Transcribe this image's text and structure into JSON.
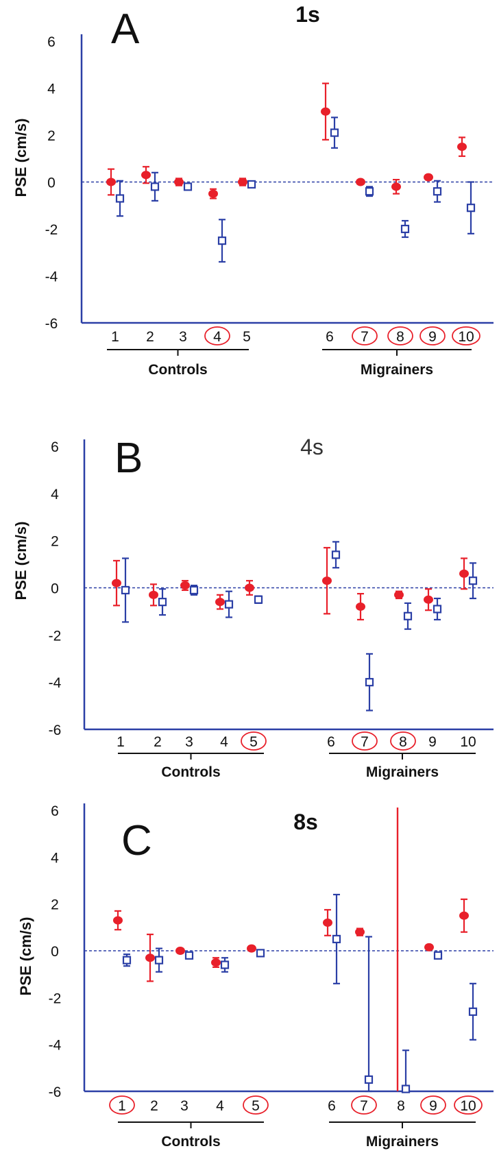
{
  "chart_data": [
    {
      "type": "scatter",
      "letter": "A",
      "title": "1s",
      "ylabel": "PSE (cm/s)",
      "ylim": [
        -6,
        6
      ],
      "yticks": [
        "6",
        "4",
        "2",
        "0",
        "-2",
        "-4",
        "-6"
      ],
      "x_labels": [
        "1",
        "2",
        "3",
        "4",
        "5",
        "6",
        "7",
        "8",
        "9",
        "10"
      ],
      "circled": [
        "4",
        "7",
        "8",
        "9",
        "10"
      ],
      "groups": [
        "Controls",
        "Migrainers"
      ],
      "reference_line": 0,
      "series": [
        {
          "marker": "filled-circle",
          "color": "#e8202a",
          "values": [
            0.0,
            0.3,
            0.0,
            -0.5,
            0.0,
            3.0,
            0.0,
            -0.2,
            0.2,
            1.5
          ],
          "err": [
            0.55,
            0.35,
            0.15,
            0.2,
            0.15,
            1.2,
            0.05,
            0.3,
            0.1,
            0.4
          ]
        },
        {
          "marker": "open-square",
          "color": "#2b3fa6",
          "values": [
            -0.7,
            -0.2,
            -0.2,
            -2.5,
            -0.1,
            2.1,
            -0.4,
            -2.0,
            -0.4,
            -1.1
          ],
          "err": [
            0.75,
            0.6,
            0.1,
            0.9,
            0.1,
            0.65,
            0.2,
            0.35,
            0.45,
            1.1
          ]
        }
      ]
    },
    {
      "type": "scatter",
      "letter": "B",
      "title": "4s",
      "ylabel": "PSE (cm/s)",
      "ylim": [
        -6,
        6
      ],
      "yticks": [
        "6",
        "4",
        "2",
        "0",
        "-2",
        "-4",
        "-6"
      ],
      "x_labels": [
        "1",
        "2",
        "3",
        "4",
        "5",
        "6",
        "7",
        "8",
        "9",
        "10"
      ],
      "circled": [
        "5",
        "7",
        "8"
      ],
      "groups": [
        "Controls",
        "Migrainers"
      ],
      "reference_line": 0,
      "series": [
        {
          "marker": "filled-circle",
          "color": "#e8202a",
          "values": [
            0.2,
            -0.3,
            0.1,
            -0.6,
            0.0,
            0.3,
            -0.8,
            -0.3,
            -0.5,
            0.6
          ],
          "err": [
            0.95,
            0.45,
            0.2,
            0.3,
            0.3,
            1.4,
            0.55,
            0.15,
            0.45,
            0.65
          ]
        },
        {
          "marker": "open-square",
          "color": "#2b3fa6",
          "values": [
            -0.1,
            -0.6,
            -0.1,
            -0.7,
            -0.5,
            1.4,
            -4.0,
            -1.2,
            -0.9,
            0.3
          ],
          "err": [
            1.35,
            0.55,
            0.2,
            0.55,
            0.15,
            0.55,
            1.2,
            0.55,
            0.45,
            0.75
          ]
        }
      ]
    },
    {
      "type": "scatter",
      "letter": "C",
      "title": "8s",
      "ylabel": "PSE (cm/s)",
      "ylim": [
        -6,
        6
      ],
      "yticks": [
        "6",
        "4",
        "2",
        "0",
        "-2",
        "-4",
        "-6"
      ],
      "x_labels": [
        "1",
        "2",
        "3",
        "4",
        "5",
        "6",
        "7",
        "8",
        "9",
        "10"
      ],
      "circled": [
        "1",
        "5",
        "7",
        "9",
        "10"
      ],
      "groups": [
        "Controls",
        "Migrainers"
      ],
      "reference_line": 0,
      "series": [
        {
          "marker": "filled-circle",
          "color": "#e8202a",
          "values": [
            1.3,
            -0.3,
            0.0,
            -0.5,
            0.1,
            1.2,
            0.8,
            null,
            0.15,
            1.5
          ],
          "err": [
            0.4,
            1.0,
            0.1,
            0.2,
            0.1,
            0.55,
            0.15,
            null,
            0.1,
            0.7
          ],
          "overflow_line_at": "8"
        },
        {
          "marker": "open-square",
          "color": "#2b3fa6",
          "values": [
            -0.4,
            -0.4,
            -0.2,
            -0.6,
            -0.1,
            0.5,
            -5.5,
            -5.9,
            -0.2,
            -2.6
          ],
          "err": [
            0.25,
            0.5,
            0.1,
            0.3,
            0.1,
            1.9,
            6.1,
            1.65,
            0.1,
            1.2
          ]
        }
      ]
    }
  ],
  "colors": {
    "axis": "#2b3fa6",
    "controls_marker": "#e8202a",
    "migrainers_marker": "#2b3fa6",
    "circle": "#e8202a"
  }
}
